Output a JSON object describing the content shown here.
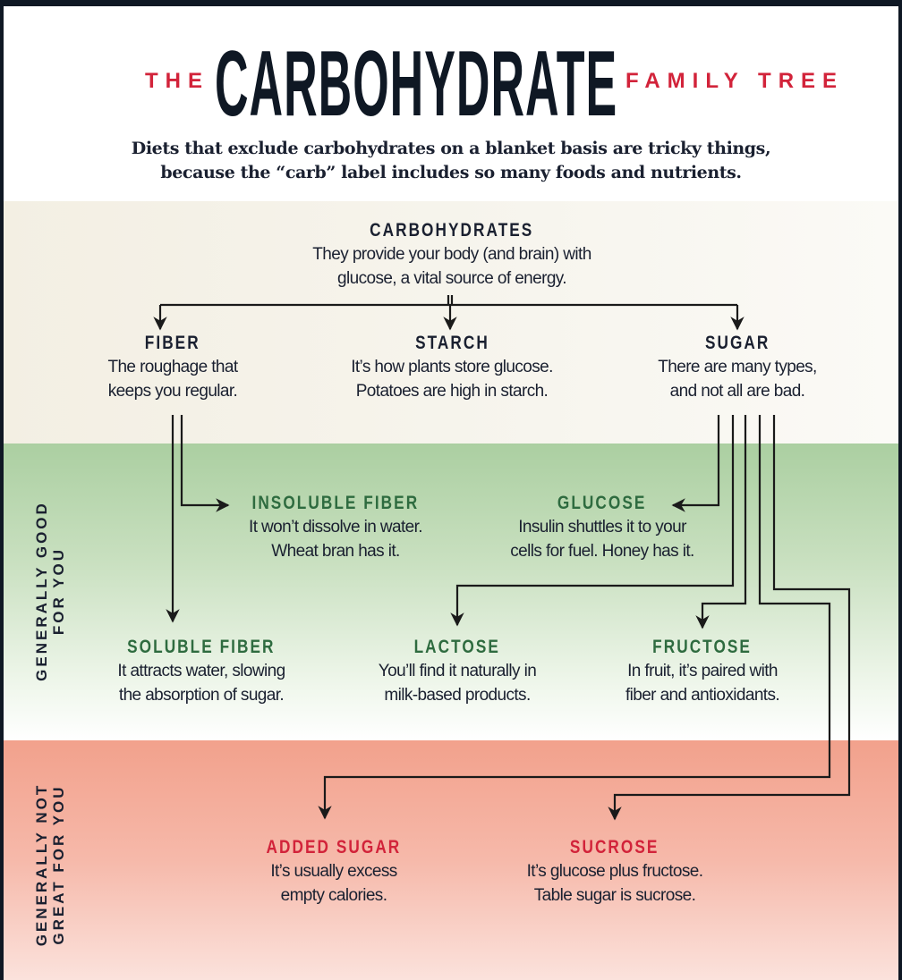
{
  "title": {
    "pre": "THE",
    "main": "CARBOHYDRATE",
    "post": "FAMILY TREE"
  },
  "subtitle": [
    "Diets that exclude carbohydrates on a blanket basis are tricky things,",
    "because the “carb” label includes so many foods and nutrients."
  ],
  "colors": {
    "dark": "#1a2030",
    "good": "#2e6b3f",
    "bad": "#d2233a"
  },
  "side_labels": {
    "good": [
      "GENERALLY GOOD",
      "FOR YOU"
    ],
    "bad": [
      "GENERALLY NOT",
      "GREAT FOR YOU"
    ]
  },
  "nodes": {
    "carbohydrates": {
      "heading": "CARBOHYDRATES",
      "desc": [
        "They provide your body (and brain) with",
        "glucose, a vital source of energy."
      ]
    },
    "fiber": {
      "heading": "FIBER",
      "desc": [
        "The roughage that",
        "keeps you regular."
      ]
    },
    "starch": {
      "heading": "STARCH",
      "desc": [
        "It’s how plants store glucose.",
        "Potatoes are high in starch."
      ]
    },
    "sugar": {
      "heading": "SUGAR",
      "desc": [
        "There are many types,",
        "and not all are bad."
      ]
    },
    "insoluble_fiber": {
      "heading": "INSOLUBLE FIBER",
      "desc": [
        "It won’t dissolve in water.",
        "Wheat bran has it."
      ]
    },
    "glucose": {
      "heading": "GLUCOSE",
      "desc": [
        "Insulin shuttles it to your",
        "cells for fuel. Honey has it."
      ]
    },
    "soluble_fiber": {
      "heading": "SOLUBLE FIBER",
      "desc": [
        "It attracts water, slowing",
        "the absorption of sugar."
      ]
    },
    "lactose": {
      "heading": "LACTOSE",
      "desc": [
        "You’ll find it naturally in",
        "milk-based products."
      ]
    },
    "fructose": {
      "heading": "FRUCTOSE",
      "desc": [
        "In fruit, it’s paired with",
        "fiber and antioxidants."
      ]
    },
    "added_sugar": {
      "heading": "ADDED SUGAR",
      "desc": [
        "It’s usually excess",
        "empty calories."
      ]
    },
    "sucrose": {
      "heading": "SUCROSE",
      "desc": [
        "It’s glucose plus fructose.",
        "Table sugar is sucrose."
      ]
    }
  }
}
